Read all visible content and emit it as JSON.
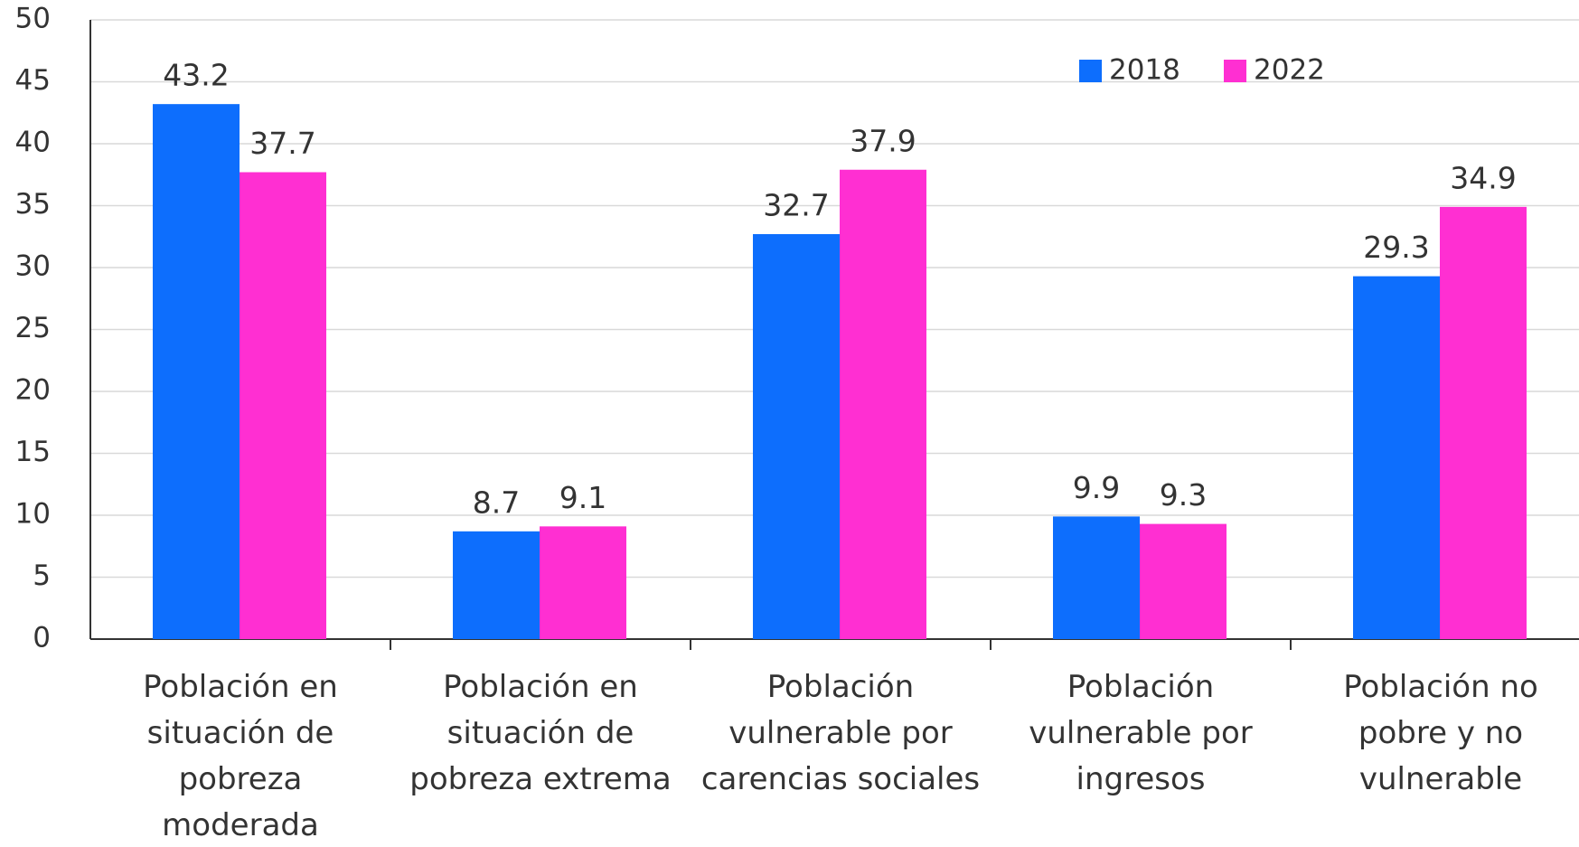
{
  "chart_data": {
    "type": "bar",
    "categories": [
      "Población en situación de pobreza moderada",
      "Población en situación de pobreza extrema",
      "Población vulnerable por carencias sociales",
      "Población vulnerable por ingresos",
      "Población no pobre y no vulnerable"
    ],
    "series": [
      {
        "name": "2018",
        "color": "#0d6efd",
        "values": [
          43.2,
          8.7,
          32.7,
          9.9,
          29.3
        ]
      },
      {
        "name": "2022",
        "color": "#ff2fd2",
        "values": [
          37.7,
          9.1,
          37.9,
          9.3,
          34.9
        ]
      }
    ],
    "ylim": [
      0,
      50
    ],
    "yticks": [
      0,
      5,
      10,
      15,
      20,
      25,
      30,
      35,
      40,
      45,
      50
    ],
    "grid": true,
    "legend": "top-right"
  }
}
